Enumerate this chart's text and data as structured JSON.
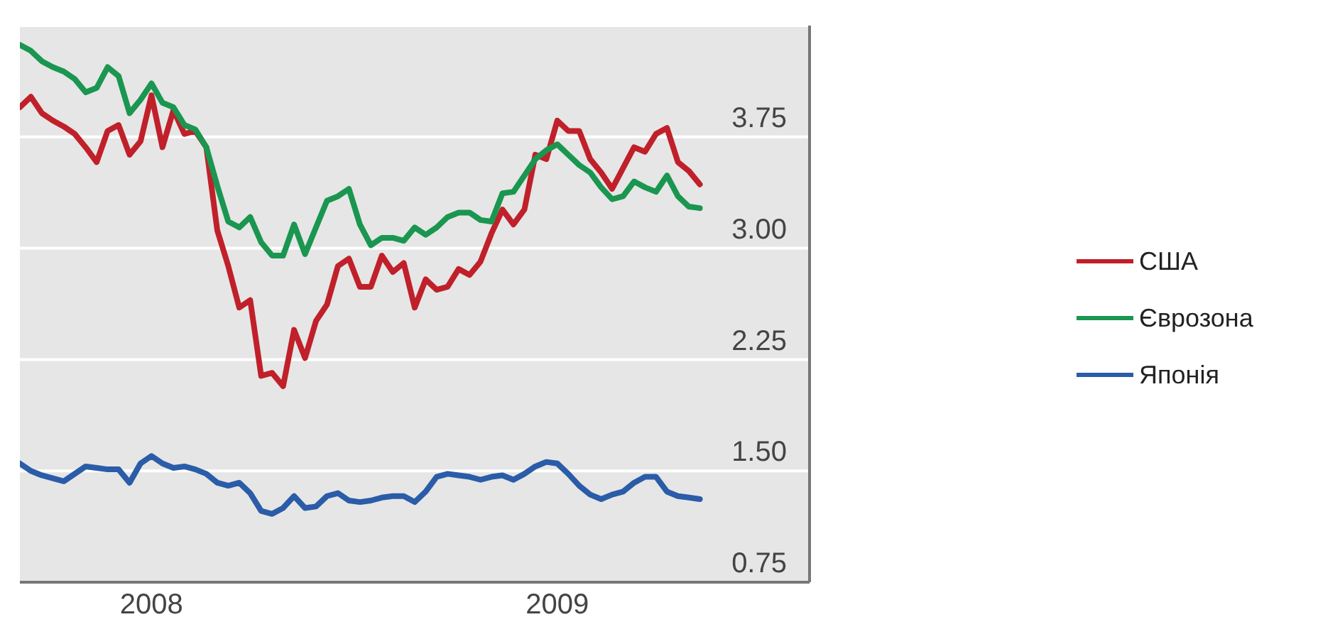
{
  "chart_data": {
    "type": "line",
    "categories": [
      null,
      null,
      null,
      null,
      null,
      null,
      null,
      null,
      null,
      null,
      null,
      null,
      "2008",
      null,
      null,
      null,
      null,
      null,
      null,
      null,
      null,
      null,
      null,
      null,
      null,
      null,
      null,
      null,
      null,
      null,
      null,
      null,
      null,
      null,
      null,
      null,
      null,
      null,
      null,
      null,
      null,
      null,
      null,
      null,
      null,
      null,
      null,
      null,
      null,
      "2009",
      null,
      null,
      null,
      null,
      null,
      null,
      null,
      null,
      null,
      null,
      null,
      null,
      null,
      null,
      null,
      null,
      null,
      null,
      null,
      null,
      null,
      null,
      null
    ],
    "series": [
      {
        "name": "США",
        "color": "#c0202a",
        "values": [
          3.95,
          4.02,
          3.91,
          3.86,
          3.82,
          3.77,
          3.68,
          3.58,
          3.79,
          3.83,
          3.63,
          3.72,
          4.03,
          3.68,
          3.93,
          3.77,
          3.79,
          3.68,
          3.12,
          2.88,
          2.6,
          2.65,
          2.14,
          2.16,
          2.07,
          2.45,
          2.26,
          2.51,
          2.62,
          2.88,
          2.93,
          2.74,
          2.74,
          2.95,
          2.84,
          2.9,
          2.6,
          2.79,
          2.72,
          2.74,
          2.86,
          2.82,
          2.91,
          3.1,
          3.26,
          3.16,
          3.26,
          3.63,
          3.6,
          3.86,
          3.79,
          3.79,
          3.6,
          3.51,
          3.4,
          3.54,
          3.68,
          3.65,
          3.77,
          3.81,
          3.58,
          3.52,
          3.43,
          null,
          null,
          null,
          null,
          null,
          null,
          null,
          null,
          null,
          null
        ]
      },
      {
        "name": "Єврозона",
        "color": "#1a9650",
        "values": [
          4.37,
          4.33,
          4.26,
          4.22,
          4.19,
          4.14,
          4.05,
          4.08,
          4.22,
          4.16,
          3.91,
          4.0,
          4.11,
          3.98,
          3.95,
          3.83,
          3.8,
          3.68,
          3.42,
          3.18,
          3.14,
          3.21,
          3.04,
          2.95,
          2.95,
          3.16,
          2.96,
          3.14,
          3.32,
          3.35,
          3.4,
          3.16,
          3.02,
          3.07,
          3.07,
          3.05,
          3.14,
          3.09,
          3.14,
          3.21,
          3.24,
          3.24,
          3.19,
          3.18,
          3.37,
          3.38,
          3.49,
          3.6,
          3.66,
          3.7,
          3.63,
          3.56,
          3.51,
          3.41,
          3.33,
          3.35,
          3.45,
          3.41,
          3.38,
          3.49,
          3.35,
          3.28,
          3.27,
          null,
          null,
          null,
          null,
          null,
          null,
          null,
          null,
          null,
          null
        ]
      },
      {
        "name": "Японія",
        "color": "#2a5ca8",
        "values": [
          1.55,
          1.5,
          1.47,
          1.45,
          1.43,
          1.48,
          1.53,
          1.52,
          1.51,
          1.51,
          1.42,
          1.55,
          1.6,
          1.55,
          1.52,
          1.53,
          1.51,
          1.48,
          1.42,
          1.4,
          1.42,
          1.35,
          1.23,
          1.21,
          1.25,
          1.33,
          1.25,
          1.26,
          1.33,
          1.35,
          1.3,
          1.29,
          1.3,
          1.32,
          1.33,
          1.33,
          1.29,
          1.36,
          1.46,
          1.48,
          1.47,
          1.46,
          1.44,
          1.46,
          1.47,
          1.44,
          1.48,
          1.53,
          1.56,
          1.55,
          1.48,
          1.4,
          1.34,
          1.31,
          1.34,
          1.36,
          1.42,
          1.46,
          1.46,
          1.36,
          1.33,
          1.32,
          1.31,
          null,
          null,
          null,
          null,
          null,
          null,
          null,
          null,
          null,
          null
        ]
      }
    ],
    "ylim": [
      0.75,
      4.5
    ],
    "yticks": [
      0.75,
      {
        "value": 1.5,
        "label": "1.50"
      },
      2.25,
      {
        "value": 3,
        "label": "3.00"
      },
      3.75
    ],
    "grid": "y",
    "legend": "right"
  }
}
